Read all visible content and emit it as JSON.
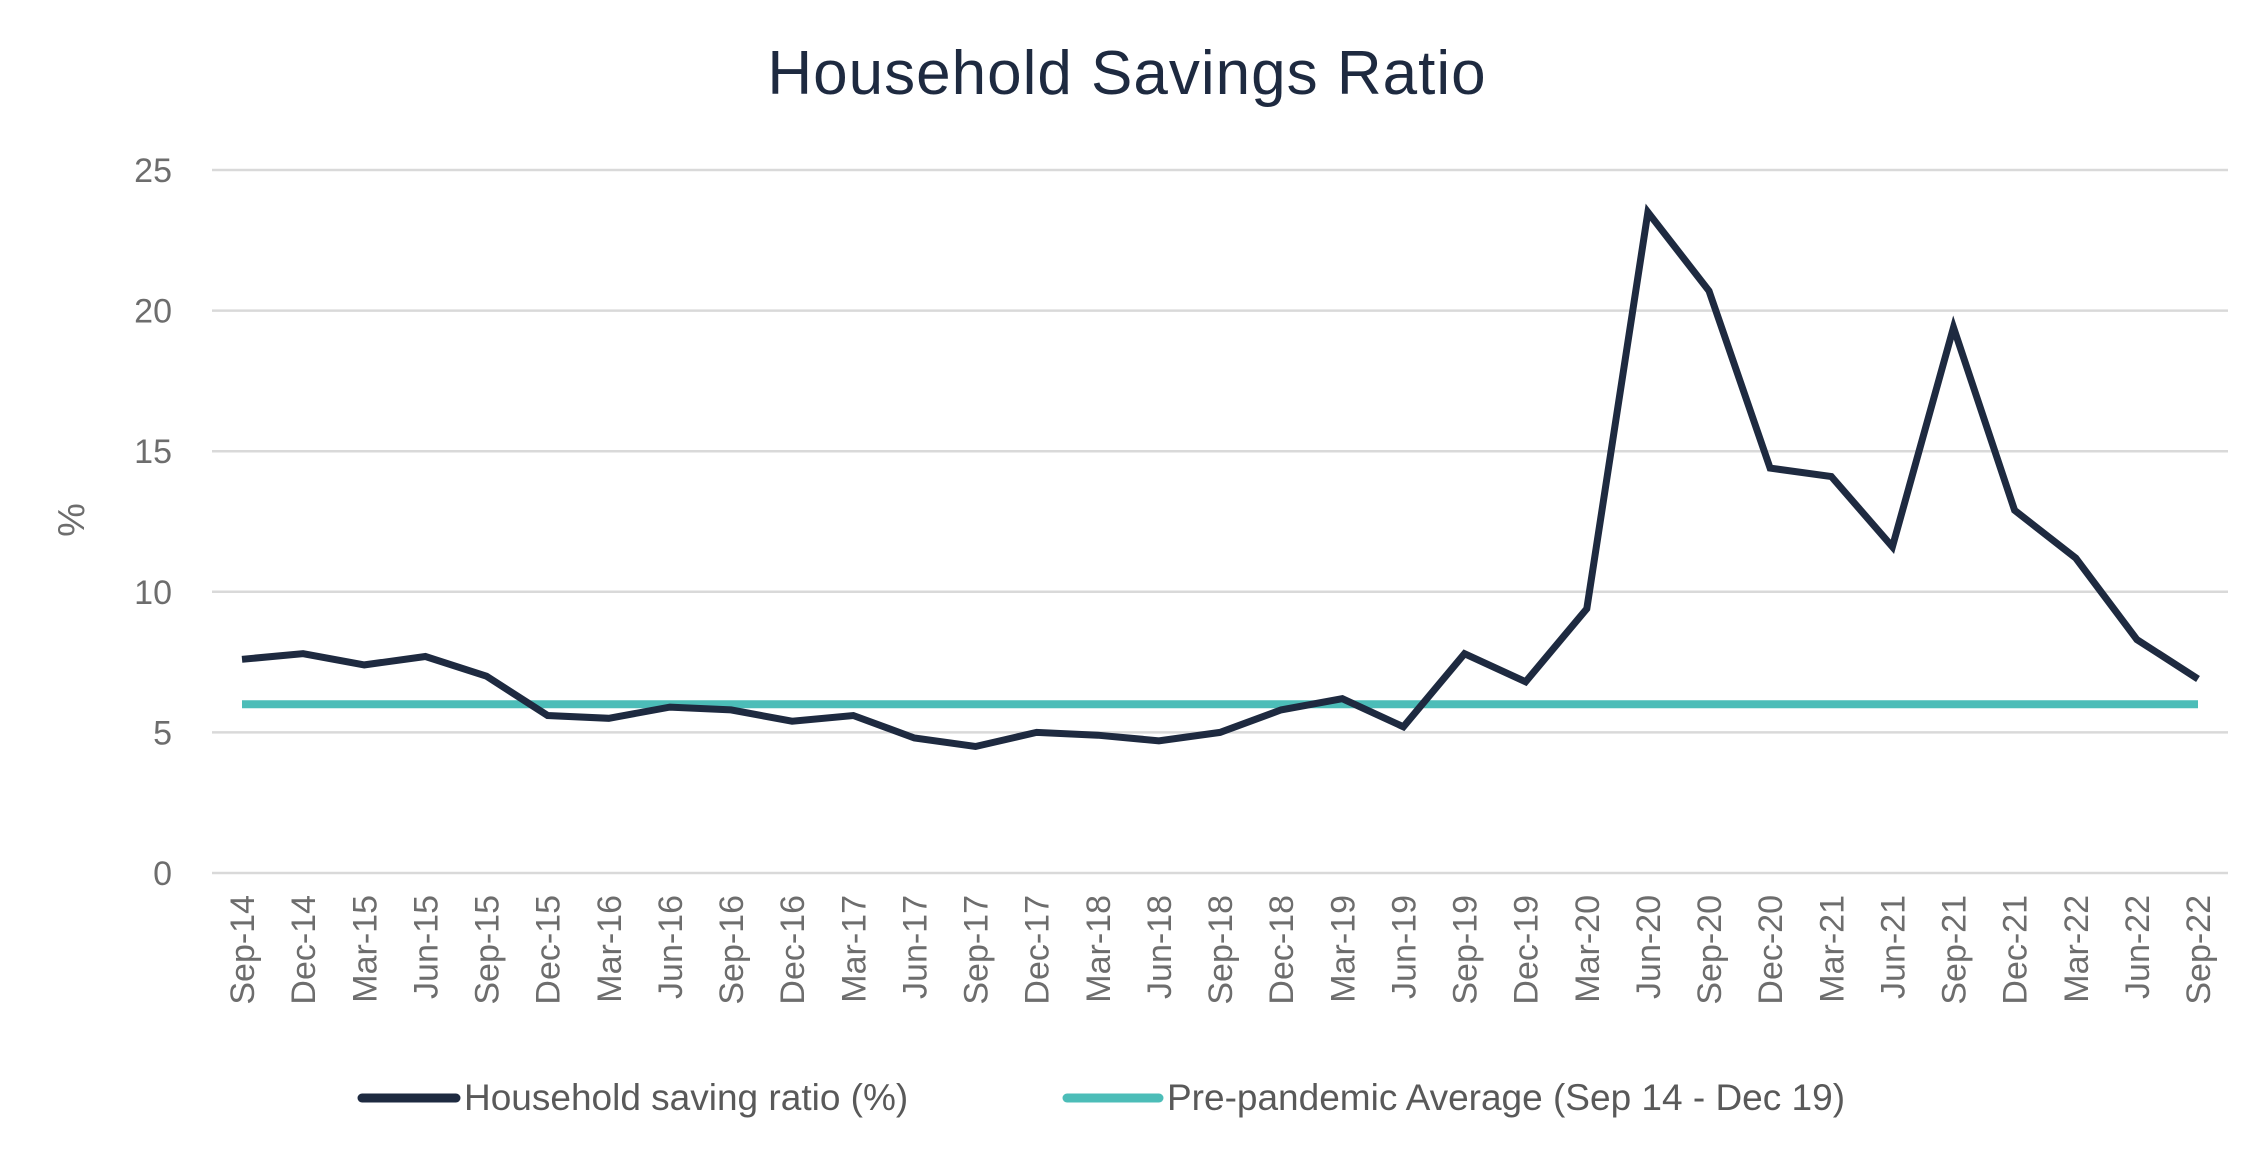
{
  "chart_data": {
    "type": "line",
    "title": "Household Savings Ratio",
    "xlabel": "",
    "ylabel": "%",
    "ylim": [
      0,
      25
    ],
    "yticks": [
      0,
      5,
      10,
      15,
      20,
      25
    ],
    "grid": true,
    "legend_position": "bottom",
    "categories": [
      "Sep-14",
      "Dec-14",
      "Mar-15",
      "Jun-15",
      "Sep-15",
      "Dec-15",
      "Mar-16",
      "Jun-16",
      "Sep-16",
      "Dec-16",
      "Mar-17",
      "Jun-17",
      "Sep-17",
      "Dec-17",
      "Mar-18",
      "Jun-18",
      "Sep-18",
      "Dec-18",
      "Mar-19",
      "Jun-19",
      "Sep-19",
      "Dec-19",
      "Mar-20",
      "Jun-20",
      "Sep-20",
      "Dec-20",
      "Mar-21",
      "Jun-21",
      "Sep-21",
      "Dec-21",
      "Mar-22",
      "Jun-22",
      "Sep-22"
    ],
    "series": [
      {
        "name": "Household saving ratio (%)",
        "color": "#1e2a40",
        "values": [
          7.6,
          7.8,
          7.4,
          7.7,
          7.0,
          5.6,
          5.5,
          5.9,
          5.8,
          5.4,
          5.6,
          4.8,
          4.5,
          5.0,
          4.9,
          4.7,
          5.0,
          5.8,
          6.2,
          5.2,
          7.8,
          6.8,
          9.4,
          23.5,
          20.7,
          14.4,
          14.1,
          11.6,
          19.4,
          12.9,
          11.2,
          8.3,
          6.9
        ]
      },
      {
        "name": "Pre-pandemic Average (Sep 14 - Dec 19)",
        "color": "#4cbdb8",
        "values": [
          6.0,
          6.0,
          6.0,
          6.0,
          6.0,
          6.0,
          6.0,
          6.0,
          6.0,
          6.0,
          6.0,
          6.0,
          6.0,
          6.0,
          6.0,
          6.0,
          6.0,
          6.0,
          6.0,
          6.0,
          6.0,
          6.0,
          6.0,
          6.0,
          6.0,
          6.0,
          6.0,
          6.0,
          6.0,
          6.0,
          6.0,
          6.0,
          6.0
        ]
      }
    ],
    "colors": {
      "gridline": "#d9d9d9",
      "tick_text": "#6d6d6d",
      "title": "#1e2a40"
    }
  }
}
